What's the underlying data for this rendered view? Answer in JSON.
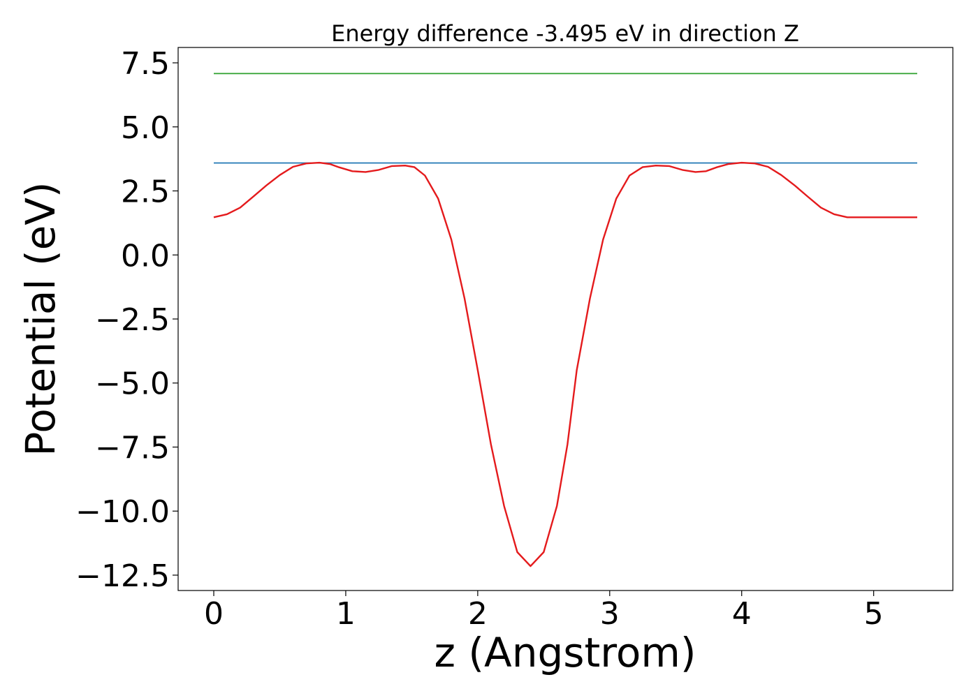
{
  "chart_data": {
    "type": "line",
    "title": "Energy difference -3.495 eV in direction Z",
    "xlabel": "z (Angstrom)",
    "ylabel": "Potential (eV)",
    "xlim": [
      -0.27,
      5.6
    ],
    "ylim": [
      -13.1,
      8.1
    ],
    "xticks": [
      0,
      1,
      2,
      3,
      4,
      5
    ],
    "xtick_labels": [
      "0",
      "1",
      "2",
      "3",
      "4",
      "5"
    ],
    "yticks": [
      7.5,
      5.0,
      2.5,
      0.0,
      -2.5,
      -5.0,
      -7.5,
      -10.0,
      -12.5
    ],
    "ytick_labels": [
      "7.5",
      "5.0",
      "2.5",
      "0.0",
      "−2.5",
      "−5.0",
      "−7.5",
      "−10.0",
      "−12.5"
    ],
    "grid": false,
    "series": [
      {
        "color": "#2ca02c",
        "x": [
          0,
          5.33
        ],
        "y": [
          7.08,
          7.08
        ]
      },
      {
        "color": "#1f77b4",
        "x": [
          0,
          5.33
        ],
        "y": [
          3.59,
          3.59
        ]
      },
      {
        "color": "#e41a1c",
        "x": [
          0,
          0.1,
          0.2,
          0.3,
          0.4,
          0.5,
          0.6,
          0.7,
          0.8,
          0.88,
          0.95,
          1.05,
          1.15,
          1.25,
          1.35,
          1.45,
          1.52,
          1.6,
          1.7,
          1.8,
          1.9,
          2.0,
          2.1,
          2.2,
          2.3,
          2.4,
          2.5,
          2.6,
          2.68,
          2.75,
          2.85,
          2.95,
          3.05,
          3.15,
          3.25,
          3.35,
          3.45,
          3.55,
          3.65,
          3.73,
          3.81,
          3.9,
          4.0,
          4.1,
          4.2,
          4.3,
          4.4,
          4.5,
          4.6,
          4.7,
          4.8,
          4.9,
          5.0,
          5.1,
          5.2,
          5.33
        ],
        "y": [
          1.47,
          1.59,
          1.85,
          2.28,
          2.72,
          3.12,
          3.44,
          3.57,
          3.6,
          3.55,
          3.42,
          3.27,
          3.24,
          3.32,
          3.47,
          3.49,
          3.43,
          3.1,
          2.2,
          0.6,
          -1.7,
          -4.5,
          -7.4,
          -9.8,
          -11.6,
          -12.15,
          -11.6,
          -9.8,
          -7.4,
          -4.5,
          -1.7,
          0.6,
          2.2,
          3.1,
          3.43,
          3.49,
          3.47,
          3.32,
          3.24,
          3.27,
          3.42,
          3.55,
          3.6,
          3.57,
          3.44,
          3.12,
          2.72,
          2.28,
          1.85,
          1.59,
          1.47,
          1.47,
          1.47,
          1.47,
          1.47,
          1.47
        ]
      }
    ]
  }
}
